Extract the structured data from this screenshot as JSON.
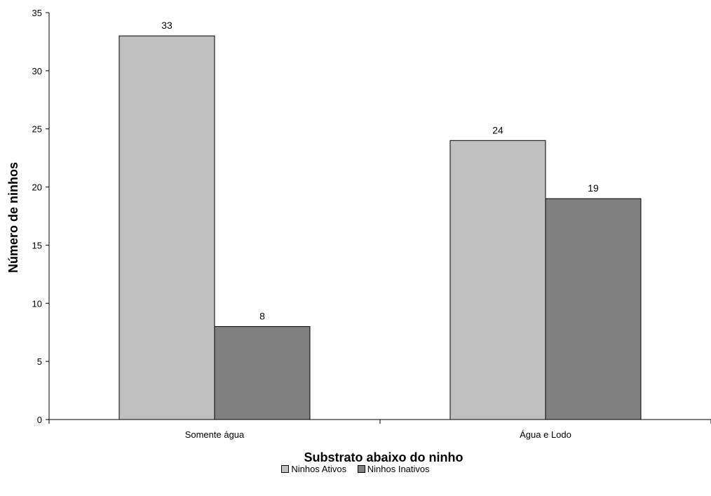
{
  "chart_data": {
    "type": "bar",
    "categories": [
      "Somente água",
      "Água e Lodo"
    ],
    "series": [
      {
        "name": "Ninhos Ativos",
        "values": [
          33,
          24
        ],
        "color": "#c0c0c0"
      },
      {
        "name": "Ninhos Inativos",
        "values": [
          8,
          19
        ],
        "color": "#808080"
      }
    ],
    "title": "",
    "xlabel": "Substrato abaixo do ninho",
    "ylabel": "Número de ninhos",
    "ylim": [
      0,
      35
    ],
    "yticks": [
      0,
      5,
      10,
      15,
      20,
      25,
      30,
      35
    ],
    "grid": false,
    "legend_position": "bottom"
  }
}
